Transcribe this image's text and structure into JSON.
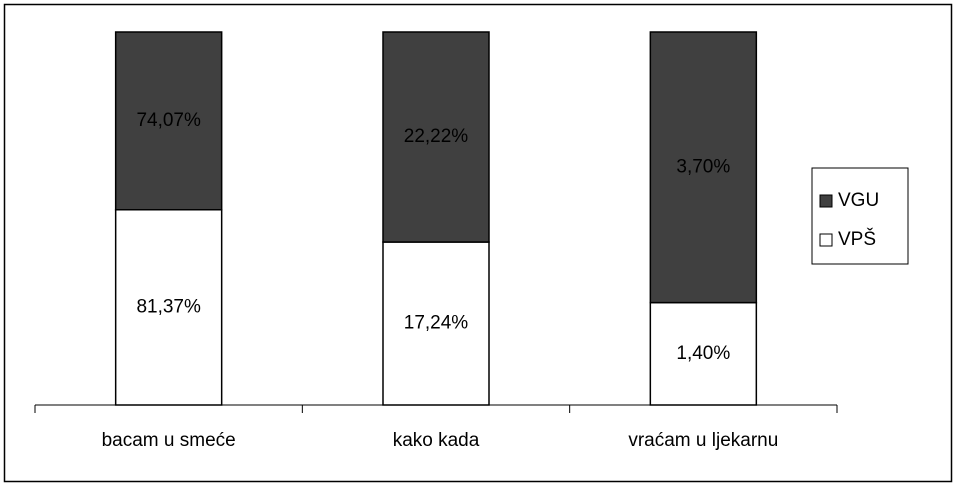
{
  "chart_data": {
    "type": "bar",
    "stacked": "percent",
    "categories": [
      "bacam u smeće",
      "kako kada",
      "vraćam u ljekarnu"
    ],
    "series": [
      {
        "name": "VPŠ",
        "color": "#ffffff",
        "values": [
          81.37,
          17.24,
          1.4
        ],
        "value_labels": [
          "81,37%",
          "17,24%",
          "1,40%"
        ]
      },
      {
        "name": "VGU",
        "color": "#404040",
        "values": [
          74.07,
          22.22,
          3.7
        ],
        "value_labels": [
          "74,07%",
          "22,22%",
          "3,70%"
        ]
      }
    ],
    "legend": "right"
  }
}
